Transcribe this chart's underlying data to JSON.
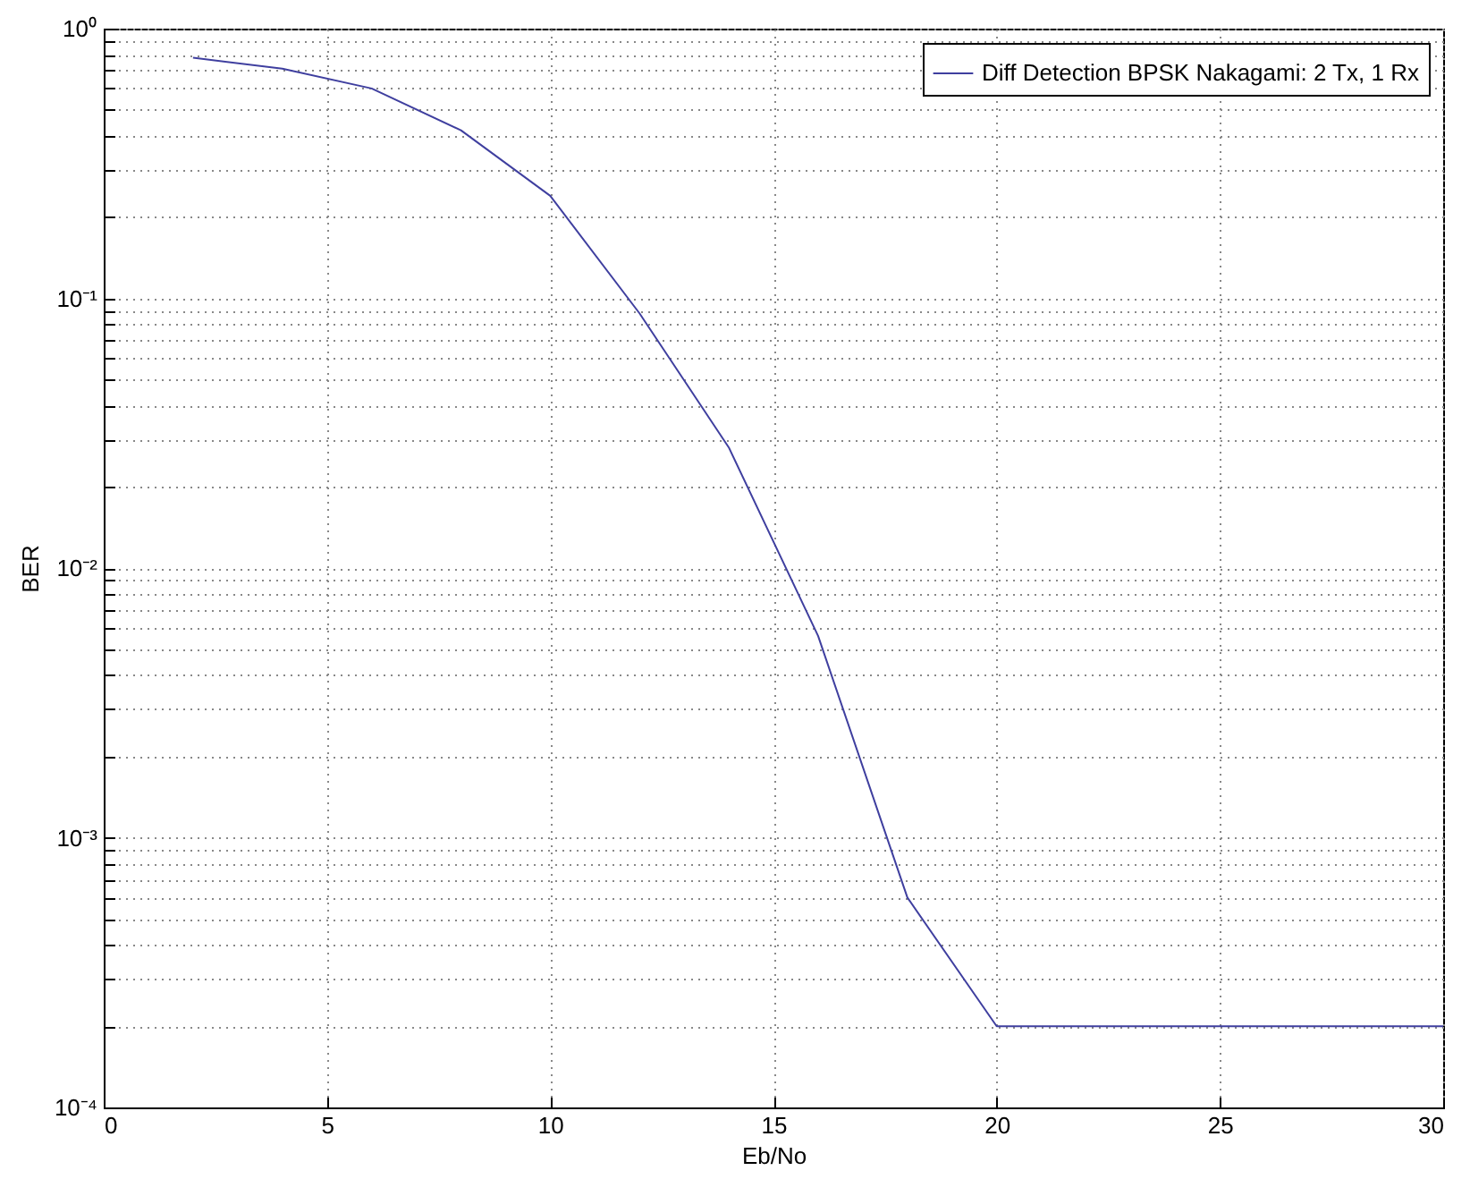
{
  "chart_data": {
    "type": "line",
    "xlabel": "Eb/No",
    "ylabel": "BER",
    "x": [
      2,
      4,
      6,
      8,
      10,
      12,
      14,
      16,
      18,
      20,
      22,
      24,
      26,
      28,
      30
    ],
    "series": [
      {
        "name": "Diff Detection BPSK Nakagami: 2 Tx, 1 Rx",
        "color": "#3f3f9f",
        "values": [
          0.78,
          0.71,
          0.6,
          0.42,
          0.24,
          0.088,
          0.028,
          0.0056,
          0.0006,
          0.0002,
          0.0002,
          0.0002,
          0.0002,
          0.0002,
          0.0002
        ]
      }
    ],
    "xlim": [
      0,
      30
    ],
    "xticks": [
      0,
      5,
      10,
      15,
      20,
      25,
      30
    ],
    "ylim": [
      0.0001,
      1
    ],
    "yticks": [
      {
        "value": 0.0001,
        "label": "10⁻⁴"
      },
      {
        "value": 0.001,
        "label": "10⁻³"
      },
      {
        "value": 0.01,
        "label": "10⁻²"
      },
      {
        "value": 0.1,
        "label": "10⁻¹"
      },
      {
        "value": 1,
        "label": "10⁰"
      }
    ],
    "log": "y",
    "grid": true,
    "legend": "top right",
    "line_style": "solid"
  }
}
